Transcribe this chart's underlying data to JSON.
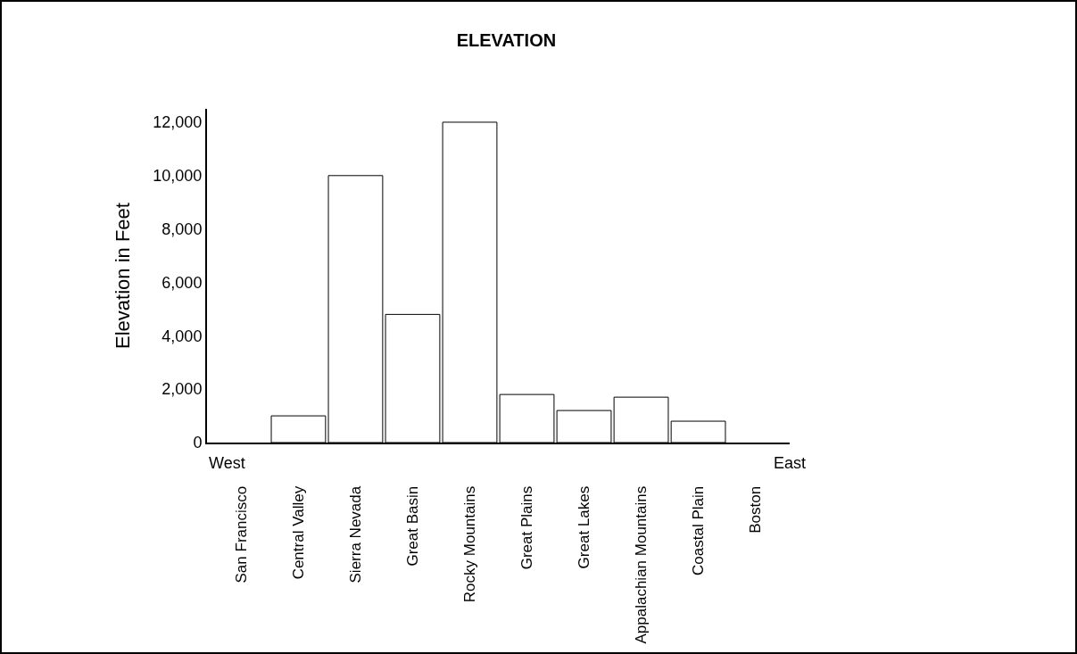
{
  "chart_data": {
    "type": "bar",
    "title": "ELEVATION",
    "ylabel": "Elevation in Feet",
    "categories": [
      "San Francisco",
      "Central Valley",
      "Sierra Nevada",
      "Great Basin",
      "Rocky Mountains",
      "Great Plains",
      "Great Lakes",
      "Appalachian Mountains",
      "Coastal Plain",
      "Boston"
    ],
    "values": [
      null,
      1000,
      10000,
      4800,
      12000,
      1800,
      1200,
      1700,
      800,
      null
    ],
    "color": "#ffffff",
    "ylim": [
      0,
      12500
    ],
    "yticks": [
      {
        "value": 0,
        "label": "0"
      },
      {
        "value": 2000,
        "label": "2,000"
      },
      {
        "value": 4000,
        "label": "4,000"
      },
      {
        "value": 6000,
        "label": "6,000"
      },
      {
        "value": 8000,
        "label": "8,000"
      },
      {
        "value": 10000,
        "label": "10,000"
      },
      {
        "value": 12000,
        "label": "12,000"
      }
    ],
    "annotations": [
      "West",
      "East"
    ],
    "grid": false
  }
}
